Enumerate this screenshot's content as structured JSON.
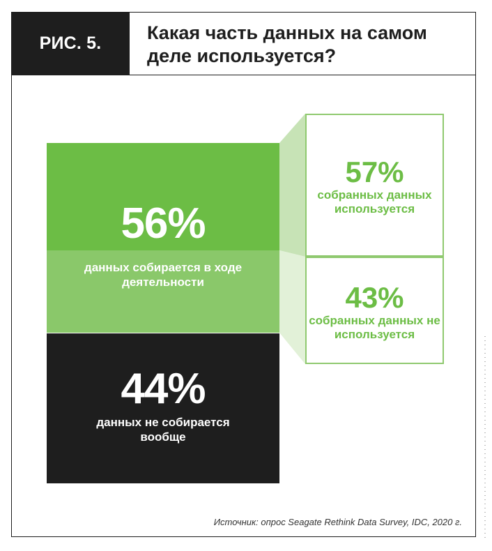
{
  "figure": {
    "label": "РИС. 5.",
    "title": "Какая часть данных на самом деле используется?",
    "source": "Источник: опрос Seagate Rethink Data Survey, IDC, 2020 г."
  },
  "chart_data": {
    "type": "bar",
    "title": "Какая часть данных на самом деле используется?",
    "main_bar": [
      {
        "value": 56,
        "label": "56%",
        "caption": "данных собирается в ходе деятельности",
        "color": "#6cbd45"
      },
      {
        "value": 44,
        "label": "44%",
        "caption": "данных не собирается вообще",
        "color": "#1e1e1e"
      }
    ],
    "breakdown": [
      {
        "value": 57,
        "label": "57%",
        "caption": "собранных данных используется"
      },
      {
        "value": 43,
        "label": "43%",
        "caption": "собранных данных не используется"
      }
    ]
  },
  "colors": {
    "accent_green": "#6cbd45",
    "light_green": "#8ac86a",
    "dark": "#1e1e1e"
  }
}
